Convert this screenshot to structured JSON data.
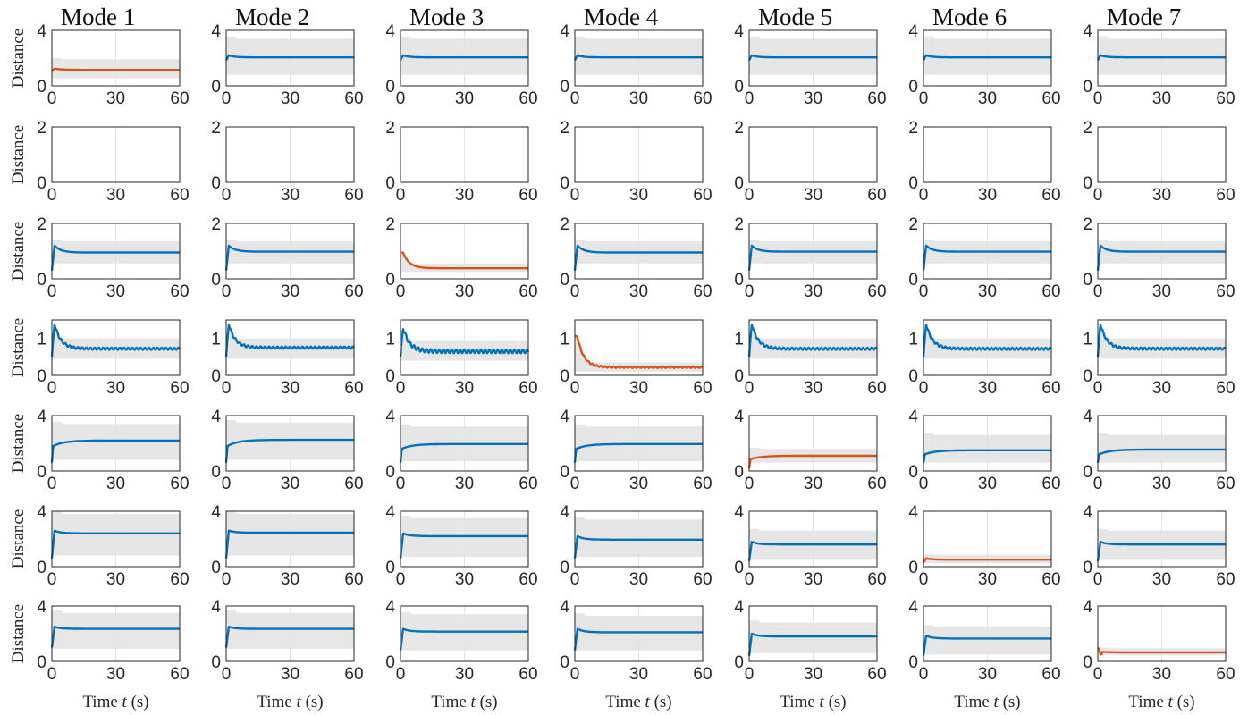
{
  "figure": {
    "mode_titles": [
      "Mode 1",
      "Mode 2",
      "Mode 3",
      "Mode 4",
      "Mode 5",
      "Mode 6",
      "Mode 7"
    ],
    "ylabel": "Distance",
    "xlabel_prefix": "Time ",
    "xlabel_var": "t",
    "xlabel_suffix": " (s)",
    "colors": {
      "highlight": "#D95319",
      "normal": "#0072BD",
      "band": "#E6E6E6",
      "grid": "#E3E3E3",
      "axis": "#262626"
    }
  },
  "chart_data": {
    "type": "line",
    "layout": "grid of 7 rows x 7 columns",
    "x_range": [
      0,
      60
    ],
    "x_ticks": [
      0,
      30,
      60
    ],
    "x_tick_labels": [
      "0",
      "30",
      "60"
    ],
    "grid": "vertical at x=30",
    "rows": [
      {
        "ylim": [
          0,
          4
        ],
        "y_tick_labels": [
          "0",
          "4"
        ],
        "panels": [
          {
            "color": "highlight",
            "peak": 1.25,
            "steady": 1.15,
            "band": [
              0.55,
              1.9
            ]
          },
          {
            "color": "normal",
            "peak": 2.2,
            "steady": 2.05,
            "band": [
              0.8,
              3.4
            ]
          },
          {
            "color": "normal",
            "peak": 2.2,
            "steady": 2.05,
            "band": [
              0.8,
              3.4
            ]
          },
          {
            "color": "normal",
            "peak": 2.2,
            "steady": 2.05,
            "band": [
              0.8,
              3.4
            ]
          },
          {
            "color": "normal",
            "peak": 2.2,
            "steady": 2.05,
            "band": [
              0.8,
              3.4
            ]
          },
          {
            "color": "normal",
            "peak": 2.2,
            "steady": 2.05,
            "band": [
              0.8,
              3.4
            ]
          },
          {
            "color": "normal",
            "peak": 2.2,
            "steady": 2.05,
            "band": [
              0.8,
              3.4
            ]
          }
        ]
      },
      {
        "ylim": [
          0,
          2
        ],
        "y_tick_labels": [
          "0",
          "2"
        ],
        "panels": [
          {},
          {},
          {},
          {},
          {},
          {},
          {}
        ]
      },
      {
        "ylim": [
          0,
          2
        ],
        "y_tick_labels": [
          "0",
          "2"
        ],
        "panels": [
          {
            "color": "normal",
            "start": 0.3,
            "peak": 1.2,
            "steady": 0.95,
            "band": [
              0.55,
              1.35
            ]
          },
          {
            "color": "normal",
            "start": 0.3,
            "peak": 1.2,
            "steady": 0.98,
            "band": [
              0.55,
              1.35
            ]
          },
          {
            "color": "highlight",
            "start": 0.95,
            "peak": 0.95,
            "steady": 0.38,
            "band": [
              0.25,
              0.55
            ]
          },
          {
            "color": "normal",
            "start": 0.3,
            "peak": 1.2,
            "steady": 0.95,
            "band": [
              0.55,
              1.35
            ]
          },
          {
            "color": "normal",
            "start": 0.3,
            "peak": 1.2,
            "steady": 0.98,
            "band": [
              0.55,
              1.35
            ]
          },
          {
            "color": "normal",
            "start": 0.3,
            "peak": 1.2,
            "steady": 0.98,
            "band": [
              0.55,
              1.35
            ]
          },
          {
            "color": "normal",
            "start": 0.3,
            "peak": 1.2,
            "steady": 0.98,
            "band": [
              0.55,
              1.35
            ]
          }
        ]
      },
      {
        "ylim": [
          0,
          1.5
        ],
        "y_tick_labels": [
          "0",
          "1"
        ],
        "panels": [
          {
            "color": "normal",
            "start": 0.5,
            "peak": 1.4,
            "steady": 0.72,
            "band": [
              0.45,
              1.0
            ],
            "ripple": 0.03
          },
          {
            "color": "normal",
            "start": 0.5,
            "peak": 1.4,
            "steady": 0.75,
            "band": [
              0.45,
              1.0
            ],
            "ripple": 0.03
          },
          {
            "color": "normal",
            "start": 0.5,
            "peak": 1.3,
            "steady": 0.65,
            "band": [
              0.4,
              0.95
            ],
            "ripple": 0.05
          },
          {
            "color": "highlight",
            "start": 1.05,
            "peak": 1.05,
            "steady": 0.22,
            "band": [
              0.1,
              0.35
            ],
            "ripple": 0.02
          },
          {
            "color": "normal",
            "start": 0.5,
            "peak": 1.4,
            "steady": 0.72,
            "band": [
              0.45,
              1.0
            ],
            "ripple": 0.03
          },
          {
            "color": "normal",
            "start": 0.5,
            "peak": 1.4,
            "steady": 0.72,
            "band": [
              0.45,
              1.0
            ],
            "ripple": 0.03
          },
          {
            "color": "normal",
            "start": 0.5,
            "peak": 1.4,
            "steady": 0.72,
            "band": [
              0.45,
              1.0
            ],
            "ripple": 0.03
          }
        ]
      },
      {
        "ylim": [
          0,
          4
        ],
        "y_tick_labels": [
          "0",
          "4"
        ],
        "panels": [
          {
            "color": "normal",
            "start": 0.6,
            "peak": 1.8,
            "steady": 2.2,
            "band": [
              0.8,
              3.4
            ],
            "rise": true
          },
          {
            "color": "normal",
            "start": 0.6,
            "peak": 1.8,
            "steady": 2.25,
            "band": [
              0.8,
              3.5
            ],
            "rise": true
          },
          {
            "color": "normal",
            "start": 0.6,
            "peak": 1.6,
            "steady": 1.95,
            "band": [
              0.7,
              3.2
            ],
            "rise": true
          },
          {
            "color": "normal",
            "start": 0.6,
            "peak": 1.6,
            "steady": 1.95,
            "band": [
              0.7,
              3.2
            ],
            "rise": true
          },
          {
            "color": "highlight",
            "start": 0.2,
            "peak": 0.85,
            "steady": 1.1,
            "band": [
              0.6,
              1.6
            ],
            "rise": true
          },
          {
            "color": "normal",
            "start": 0.6,
            "peak": 1.2,
            "steady": 1.5,
            "band": [
              0.6,
              2.6
            ],
            "rise": true
          },
          {
            "color": "normal",
            "start": 0.6,
            "peak": 1.2,
            "steady": 1.55,
            "band": [
              0.6,
              2.6
            ],
            "rise": true
          }
        ]
      },
      {
        "ylim": [
          0,
          4
        ],
        "y_tick_labels": [
          "0",
          "4"
        ],
        "panels": [
          {
            "color": "normal",
            "start": 0.6,
            "peak": 2.6,
            "steady": 2.4,
            "band": [
              0.8,
              3.8
            ]
          },
          {
            "color": "normal",
            "start": 0.6,
            "peak": 2.6,
            "steady": 2.45,
            "band": [
              0.8,
              3.8
            ]
          },
          {
            "color": "normal",
            "start": 0.6,
            "peak": 2.4,
            "steady": 2.2,
            "band": [
              0.7,
              3.5
            ]
          },
          {
            "color": "normal",
            "start": 0.6,
            "peak": 2.2,
            "steady": 1.95,
            "band": [
              0.7,
              3.4
            ]
          },
          {
            "color": "normal",
            "start": 0.4,
            "peak": 1.8,
            "steady": 1.6,
            "band": [
              0.5,
              2.6
            ]
          },
          {
            "color": "highlight",
            "start": 0.3,
            "peak": 0.6,
            "steady": 0.5,
            "band": [
              0.25,
              0.85
            ]
          },
          {
            "color": "normal",
            "start": 0.4,
            "peak": 1.8,
            "steady": 1.6,
            "band": [
              0.5,
              2.6
            ]
          }
        ]
      },
      {
        "ylim": [
          0,
          4
        ],
        "y_tick_labels": [
          "0",
          "4"
        ],
        "panels": [
          {
            "color": "normal",
            "start": 1.0,
            "peak": 2.5,
            "steady": 2.35,
            "band": [
              0.9,
              3.5
            ]
          },
          {
            "color": "normal",
            "start": 1.0,
            "peak": 2.5,
            "steady": 2.35,
            "band": [
              0.9,
              3.5
            ]
          },
          {
            "color": "normal",
            "start": 0.8,
            "peak": 2.35,
            "steady": 2.15,
            "band": [
              0.8,
              3.4
            ]
          },
          {
            "color": "normal",
            "start": 0.8,
            "peak": 2.35,
            "steady": 2.1,
            "band": [
              0.8,
              3.3
            ]
          },
          {
            "color": "normal",
            "start": 0.4,
            "peak": 2.0,
            "steady": 1.8,
            "band": [
              0.6,
              2.8
            ]
          },
          {
            "color": "normal",
            "start": 0.4,
            "peak": 1.85,
            "steady": 1.65,
            "band": [
              0.5,
              2.5
            ]
          },
          {
            "color": "highlight",
            "start": 1.0,
            "peak": 0.7,
            "steady": 0.65,
            "band": [
              0.45,
              0.95
            ],
            "dip": 0.2
          }
        ]
      }
    ]
  }
}
